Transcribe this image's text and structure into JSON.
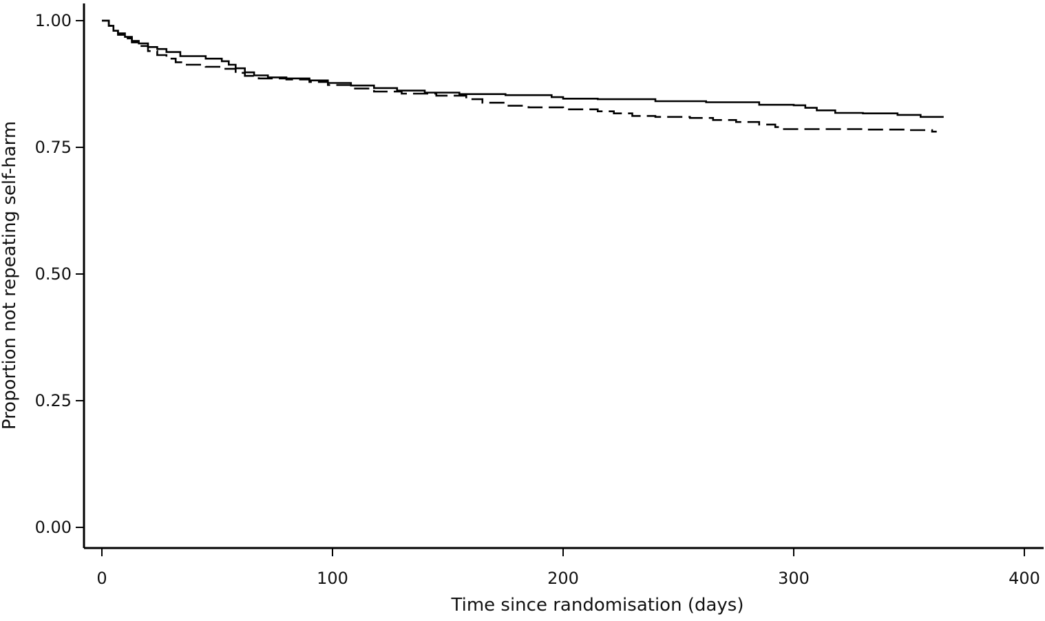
{
  "chart_data": {
    "type": "line",
    "title": "",
    "xlabel": "Time since randomisation  (days)",
    "ylabel": "Proportion not repeating self-harm",
    "xlim": [
      0,
      400
    ],
    "ylim": [
      0,
      1
    ],
    "x_ticks": [
      0,
      100,
      200,
      300,
      400
    ],
    "x_tick_labels": [
      "0",
      "100",
      "200",
      "300",
      "400"
    ],
    "y_ticks": [
      0,
      0.25,
      0.5,
      0.75,
      1
    ],
    "y_tick_labels": [
      "0.00",
      "0.25",
      "0.50",
      "0.75",
      "1.00"
    ],
    "grid": false,
    "legend": "none",
    "step": true,
    "series": [
      {
        "style": "solid",
        "color": "#000000",
        "points": [
          [
            0,
            1.0
          ],
          [
            3,
            0.99
          ],
          [
            5,
            0.98
          ],
          [
            7,
            0.975
          ],
          [
            10,
            0.968
          ],
          [
            13,
            0.96
          ],
          [
            16,
            0.955
          ],
          [
            20,
            0.948
          ],
          [
            24,
            0.944
          ],
          [
            28,
            0.938
          ],
          [
            34,
            0.93
          ],
          [
            45,
            0.925
          ],
          [
            52,
            0.92
          ],
          [
            55,
            0.913
          ],
          [
            58,
            0.906
          ],
          [
            62,
            0.898
          ],
          [
            66,
            0.892
          ],
          [
            72,
            0.888
          ],
          [
            80,
            0.886
          ],
          [
            90,
            0.882
          ],
          [
            98,
            0.877
          ],
          [
            108,
            0.872
          ],
          [
            118,
            0.867
          ],
          [
            128,
            0.862
          ],
          [
            140,
            0.858
          ],
          [
            155,
            0.855
          ],
          [
            175,
            0.853
          ],
          [
            195,
            0.849
          ],
          [
            200,
            0.846
          ],
          [
            215,
            0.845
          ],
          [
            240,
            0.841
          ],
          [
            262,
            0.839
          ],
          [
            285,
            0.834
          ],
          [
            300,
            0.833
          ],
          [
            305,
            0.828
          ],
          [
            310,
            0.823
          ],
          [
            318,
            0.818
          ],
          [
            330,
            0.817
          ],
          [
            345,
            0.814
          ],
          [
            355,
            0.81
          ],
          [
            365,
            0.81
          ]
        ]
      },
      {
        "style": "dashed",
        "color": "#000000",
        "points": [
          [
            0,
            1.0
          ],
          [
            3,
            0.99
          ],
          [
            5,
            0.98
          ],
          [
            7,
            0.972
          ],
          [
            10,
            0.965
          ],
          [
            13,
            0.957
          ],
          [
            16,
            0.95
          ],
          [
            20,
            0.94
          ],
          [
            24,
            0.932
          ],
          [
            28,
            0.925
          ],
          [
            32,
            0.918
          ],
          [
            36,
            0.913
          ],
          [
            45,
            0.909
          ],
          [
            52,
            0.905
          ],
          [
            58,
            0.897
          ],
          [
            62,
            0.891
          ],
          [
            68,
            0.886
          ],
          [
            80,
            0.884
          ],
          [
            90,
            0.879
          ],
          [
            98,
            0.873
          ],
          [
            108,
            0.866
          ],
          [
            118,
            0.86
          ],
          [
            130,
            0.856
          ],
          [
            145,
            0.852
          ],
          [
            158,
            0.845
          ],
          [
            165,
            0.838
          ],
          [
            175,
            0.832
          ],
          [
            185,
            0.829
          ],
          [
            200,
            0.825
          ],
          [
            215,
            0.821
          ],
          [
            222,
            0.817
          ],
          [
            230,
            0.812
          ],
          [
            240,
            0.81
          ],
          [
            255,
            0.808
          ],
          [
            265,
            0.804
          ],
          [
            275,
            0.8
          ],
          [
            285,
            0.795
          ],
          [
            292,
            0.79
          ],
          [
            295,
            0.786
          ],
          [
            310,
            0.786
          ],
          [
            330,
            0.785
          ],
          [
            350,
            0.784
          ],
          [
            360,
            0.781
          ],
          [
            362,
            0.781
          ]
        ]
      }
    ]
  }
}
